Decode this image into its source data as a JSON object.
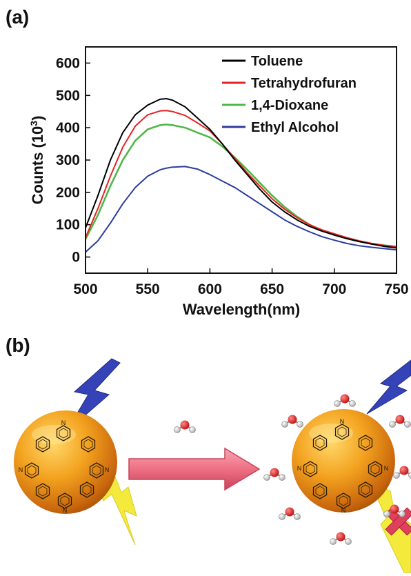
{
  "panel_a_label": "(a)",
  "panel_b_label": "(b)",
  "chart_data": {
    "type": "line",
    "xlabel": "Wavelength(nm)",
    "ylabel": "Counts (10",
    "ylabel_sup": "3",
    "ylabel_end": ")",
    "xlim": [
      500,
      750
    ],
    "ylim": [
      -50,
      650
    ],
    "xticks": [
      500,
      550,
      600,
      650,
      700,
      750
    ],
    "yticks": [
      0,
      100,
      200,
      300,
      400,
      500,
      600
    ],
    "legend_position": "top-right",
    "grid": false,
    "x": [
      500,
      510,
      520,
      530,
      540,
      550,
      560,
      565,
      570,
      580,
      590,
      600,
      610,
      620,
      630,
      640,
      650,
      660,
      670,
      680,
      690,
      700,
      710,
      720,
      730,
      740,
      750
    ],
    "series": [
      {
        "name": "Toluene",
        "color": "#000000",
        "values": [
          90,
          190,
          300,
          385,
          440,
          470,
          488,
          490,
          485,
          465,
          430,
          395,
          350,
          300,
          255,
          210,
          170,
          140,
          115,
          95,
          80,
          68,
          57,
          48,
          40,
          33,
          28
        ]
      },
      {
        "name": "Tetrahydrofuran",
        "color": "#e32322",
        "values": [
          60,
          150,
          250,
          340,
          405,
          440,
          452,
          453,
          450,
          438,
          415,
          390,
          350,
          305,
          260,
          220,
          180,
          148,
          122,
          100,
          84,
          72,
          60,
          50,
          42,
          36,
          32
        ]
      },
      {
        "name": "1,4-Dioxane",
        "color": "#4fb848",
        "values": [
          55,
          130,
          220,
          300,
          360,
          395,
          408,
          410,
          408,
          400,
          385,
          370,
          342,
          308,
          270,
          230,
          190,
          155,
          125,
          100,
          82,
          68,
          58,
          48,
          41,
          36,
          32
        ]
      },
      {
        "name": "Ethyl Alcohol",
        "color": "#2b3c9e",
        "values": [
          15,
          50,
          105,
          165,
          215,
          250,
          270,
          275,
          278,
          280,
          272,
          255,
          235,
          215,
          190,
          165,
          140,
          115,
          95,
          78,
          63,
          52,
          42,
          35,
          30,
          26,
          22
        ]
      }
    ]
  },
  "scheme": {
    "nitrogen_label": "N",
    "arrow_color": "#f07a8c",
    "sphere_color": "#f0a020",
    "bolt_top_color": "#3543b8",
    "bolt_bottom_color": "#f4ea3c",
    "cross_color": "#e0405c"
  }
}
